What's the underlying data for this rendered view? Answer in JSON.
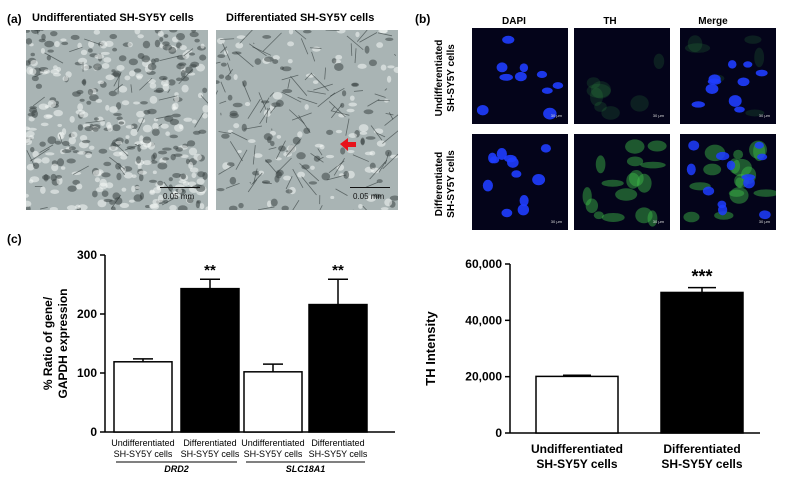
{
  "panel_a": {
    "letter": "(a)",
    "left_title": "Undifferentiated SH-SY5Y cells",
    "right_title": "Differentiated SH-SY5Y cells",
    "left_scale": "0.05 mm",
    "right_scale": "0.05 mm",
    "arrow_color": "#e8131b"
  },
  "panel_b": {
    "letter": "(b)",
    "columns": [
      "DAPI",
      "TH",
      "Merge"
    ],
    "rows": [
      {
        "line1": "Undifferentiated",
        "line2": "SH-SY5Y cells"
      },
      {
        "line1": "Differentiated",
        "line2": "SH-SY5Y cells"
      }
    ],
    "scale_label": "30 μm",
    "colors": {
      "dapi": "#1f3dff",
      "th": "#3fbf4a",
      "background": "#04041a"
    }
  },
  "panel_c": {
    "letter": "(c)"
  },
  "chart_data": [
    {
      "type": "bar",
      "ylabel_line1": "% Ratio of gene/",
      "ylabel_line2": "GAPDH expression",
      "ylim": [
        0,
        300
      ],
      "yticks": [
        0,
        100,
        200,
        300
      ],
      "categories": [
        {
          "line1": "Undifferentiated",
          "line2": "SH-SY5Y cells"
        },
        {
          "line1": "Differentiated",
          "line2": "SH-SY5Y cells"
        },
        {
          "line1": "Undifferentiated",
          "line2": "SH-SY5Y cells"
        },
        {
          "line1": "Differentiated",
          "line2": "SH-SY5Y cells"
        }
      ],
      "values": [
        119,
        243,
        102,
        216
      ],
      "errors": [
        5,
        16,
        13,
        43
      ],
      "bar_colors": [
        "#ffffff",
        "#000000",
        "#ffffff",
        "#000000"
      ],
      "significance": [
        "",
        "**",
        "",
        "**"
      ],
      "groups": [
        {
          "label": "DRD2",
          "bars": [
            0,
            1
          ]
        },
        {
          "label": "SLC18A1",
          "bars": [
            2,
            3
          ]
        }
      ]
    },
    {
      "type": "bar",
      "ylabel": "TH Intensity",
      "ylim": [
        0,
        60000
      ],
      "yticks": [
        "0",
        "20,000",
        "40,000",
        "60,000"
      ],
      "ytick_values": [
        0,
        20000,
        40000,
        60000
      ],
      "categories": [
        {
          "line1": "Undifferentiated",
          "line2": "SH-SY5Y cells"
        },
        {
          "line1": "Differentiated",
          "line2": "SH-SY5Y cells"
        }
      ],
      "values": [
        20100,
        49900
      ],
      "errors": [
        400,
        1700
      ],
      "bar_colors": [
        "#ffffff",
        "#000000"
      ],
      "significance": [
        "",
        "***"
      ]
    }
  ]
}
